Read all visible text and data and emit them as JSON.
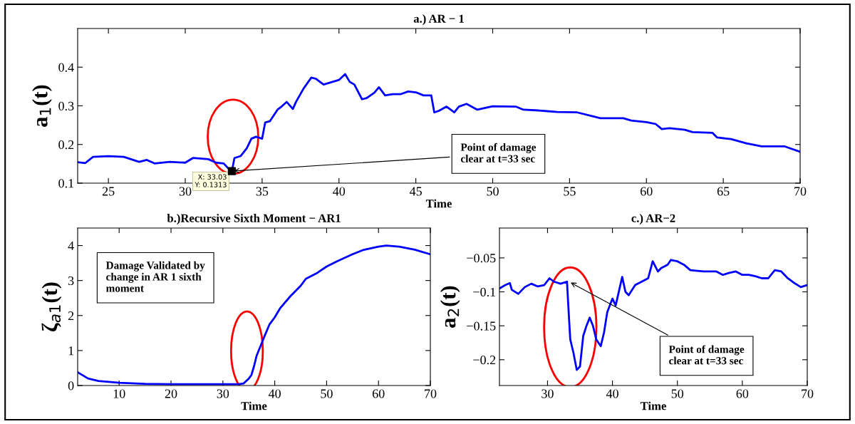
{
  "chart_data": [
    {
      "type": "line",
      "title": "a.) AR − 1",
      "xlabel": "Time",
      "ylabel": "a$_{1}$(t)",
      "xlim": [
        23,
        70
      ],
      "ylim": [
        0.1,
        0.5
      ],
      "xticks": [
        25,
        30,
        35,
        40,
        45,
        50,
        55,
        60,
        65,
        70
      ],
      "yticks": [
        0.1,
        0.2,
        0.3,
        0.4
      ],
      "grid": false,
      "legend": false,
      "series": [
        {
          "color": "#0000ff",
          "x": [
            23,
            23.5,
            24,
            25,
            26,
            27,
            27.5,
            28,
            29,
            30,
            30.5,
            31.5,
            32,
            32.5,
            32.8,
            33.03,
            33.2,
            33.6,
            34,
            34.3,
            34.6,
            35,
            35.2,
            35.5,
            36,
            36.2,
            36.6,
            37,
            37.2,
            37.7,
            38.2,
            38.5,
            39,
            40,
            40.4,
            40.7,
            41,
            41.5,
            41.8,
            42.3,
            42.6,
            43,
            43.5,
            44,
            44.5,
            45,
            45.5,
            46,
            46.2,
            46.5,
            47,
            47.5,
            47.8,
            48.3,
            49,
            50,
            51.5,
            52,
            53,
            54.2,
            55.5,
            56.5,
            57,
            58.5,
            59,
            60,
            60.6,
            61,
            61.5,
            62.5,
            63,
            64.3,
            64.6,
            65.5,
            66.5,
            67.5,
            69,
            70
          ],
          "values": [
            0.154,
            0.152,
            0.168,
            0.17,
            0.168,
            0.155,
            0.16,
            0.151,
            0.155,
            0.153,
            0.165,
            0.162,
            0.153,
            0.151,
            0.138,
            0.131,
            0.165,
            0.17,
            0.19,
            0.215,
            0.22,
            0.215,
            0.257,
            0.26,
            0.29,
            0.296,
            0.31,
            0.292,
            0.31,
            0.345,
            0.373,
            0.37,
            0.355,
            0.367,
            0.382,
            0.362,
            0.355,
            0.317,
            0.32,
            0.334,
            0.348,
            0.327,
            0.33,
            0.33,
            0.337,
            0.335,
            0.327,
            0.327,
            0.283,
            0.287,
            0.298,
            0.283,
            0.298,
            0.305,
            0.29,
            0.299,
            0.298,
            0.29,
            0.288,
            0.284,
            0.283,
            0.273,
            0.268,
            0.268,
            0.262,
            0.258,
            0.253,
            0.24,
            0.242,
            0.238,
            0.232,
            0.23,
            0.218,
            0.214,
            0.203,
            0.195,
            0.195,
            0.181
          ]
        }
      ],
      "annotations": [
        "X: 33.03\nY: 0.1313",
        {
          "text": "Point of damage\nclear at t=33 sec",
          "x": 33.03,
          "y": 0.131
        }
      ]
    },
    {
      "type": "line",
      "title": "b.)Recursive Sixth Moment − AR1",
      "xlabel": "Time",
      "ylabel": "ζ$_{a1}$(t)",
      "xlim": [
        2,
        70
      ],
      "ylim": [
        0,
        4.5
      ],
      "xticks": [
        10,
        20,
        30,
        40,
        50,
        60,
        70
      ],
      "yticks": [
        0,
        1,
        2,
        3,
        4
      ],
      "grid": false,
      "legend": false,
      "series": [
        {
          "color": "#0000ff",
          "x": [
            2,
            4,
            6,
            10,
            15,
            20,
            30,
            33,
            34,
            35,
            35.5,
            36,
            36.5,
            38,
            39,
            40,
            41,
            43,
            45,
            46,
            48,
            50,
            52,
            55,
            57,
            60,
            61.5,
            64,
            67,
            70
          ],
          "values": [
            0.38,
            0.2,
            0.13,
            0.08,
            0.05,
            0.04,
            0.04,
            0.04,
            0.06,
            0.2,
            0.3,
            0.55,
            0.85,
            1.4,
            1.75,
            1.95,
            2.2,
            2.55,
            2.85,
            3.05,
            3.2,
            3.4,
            3.55,
            3.75,
            3.87,
            3.97,
            4.0,
            3.97,
            3.88,
            3.75
          ]
        }
      ],
      "annotations": [
        "Damage Validated by\nchange in AR 1 sixth\nmoment"
      ]
    },
    {
      "type": "line",
      "title": "c.) AR−2",
      "xlabel": "Time",
      "ylabel": "a$_{2}$(t)",
      "xlim": [
        22.6,
        70
      ],
      "ylim": [
        -0.238,
        -0.006
      ],
      "xticks": [
        30,
        40,
        50,
        60,
        70
      ],
      "yticks": [
        {
          "value": -0.2,
          "label": "−0.2"
        },
        {
          "value": -0.15,
          "label": "−0.15"
        },
        {
          "value": -0.1,
          "label": "−0.1"
        },
        {
          "value": -0.05,
          "label": "−0.05"
        }
      ],
      "grid": false,
      "legend": false,
      "series": [
        {
          "color": "#0000ff",
          "x": [
            22.6,
            23.5,
            24.2,
            24.5,
            25.5,
            26.5,
            27.5,
            28.5,
            29.5,
            30.3,
            31,
            32,
            33,
            33.2,
            33.5,
            34,
            34.5,
            35,
            35.5,
            36,
            36.5,
            37,
            37.5,
            38.2,
            38.7,
            39.2,
            40,
            40.5,
            41.5,
            42,
            42.5,
            43.5,
            44.5,
            45.5,
            46.2,
            47,
            47.5,
            48.5,
            49,
            50,
            51,
            52,
            54,
            56,
            57,
            58,
            59,
            60,
            61,
            62,
            63,
            64,
            65,
            66,
            67,
            68,
            69,
            70
          ],
          "values": [
            -0.095,
            -0.09,
            -0.087,
            -0.097,
            -0.103,
            -0.093,
            -0.088,
            -0.092,
            -0.09,
            -0.08,
            -0.085,
            -0.088,
            -0.085,
            -0.12,
            -0.17,
            -0.19,
            -0.215,
            -0.21,
            -0.165,
            -0.15,
            -0.138,
            -0.15,
            -0.17,
            -0.18,
            -0.16,
            -0.13,
            -0.11,
            -0.12,
            -0.078,
            -0.1,
            -0.105,
            -0.09,
            -0.085,
            -0.08,
            -0.055,
            -0.07,
            -0.065,
            -0.06,
            -0.053,
            -0.055,
            -0.06,
            -0.068,
            -0.07,
            -0.07,
            -0.075,
            -0.072,
            -0.07,
            -0.075,
            -0.075,
            -0.077,
            -0.08,
            -0.08,
            -0.068,
            -0.07,
            -0.08,
            -0.087,
            -0.093,
            -0.09
          ]
        }
      ],
      "annotations": [
        {
          "text": "Point of damage\nclear at t=33 sec",
          "x": 33.3,
          "y": -0.085
        }
      ]
    }
  ]
}
